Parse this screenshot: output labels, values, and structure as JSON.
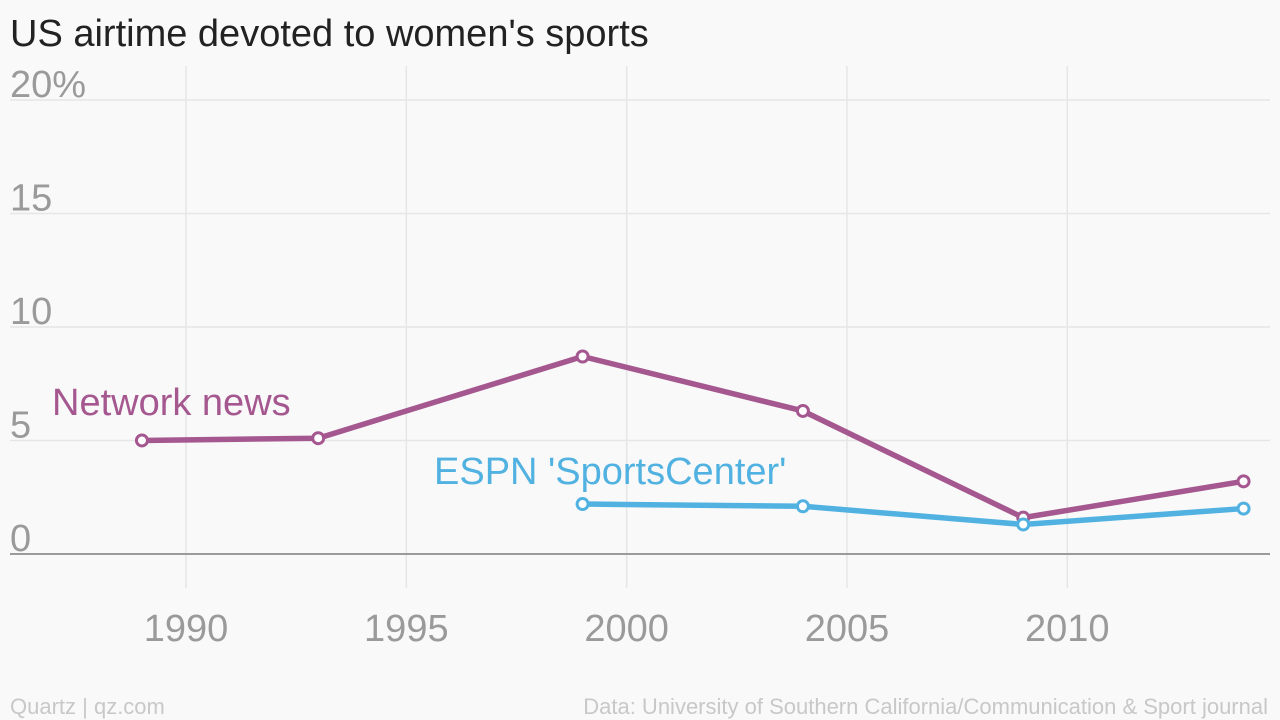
{
  "chart_data": {
    "type": "line",
    "title": "US airtime devoted to women's sports",
    "xlabel": "",
    "ylabel": "",
    "xlim": [
      1986.8,
      2014.6
    ],
    "ylim": [
      -1.5,
      21.5
    ],
    "x_ticks": [
      1990,
      1995,
      2000,
      2005,
      2010
    ],
    "x_tick_labels": [
      "1990",
      "1995",
      "2000",
      "2005",
      "2010"
    ],
    "y_ticks": [
      0,
      5,
      10,
      15,
      20
    ],
    "y_tick_labels": [
      "0",
      "5",
      "10",
      "15",
      "20%"
    ],
    "grid": true,
    "series": [
      {
        "name": "Network news",
        "color": "#a5578f",
        "x": [
          1989,
          1993,
          1999,
          2004,
          2009,
          2014
        ],
        "values": [
          5.0,
          5.1,
          8.7,
          6.3,
          1.6,
          3.2
        ]
      },
      {
        "name": "ESPN 'SportsCenter'",
        "color": "#51b2e1",
        "x": [
          1999,
          2004,
          2009,
          2014
        ],
        "values": [
          2.2,
          2.1,
          1.3,
          2.0
        ]
      }
    ]
  },
  "footer": {
    "left": "Quartz | qz.com",
    "right": "Data: University of Southern California/Communication & Sport journal"
  }
}
